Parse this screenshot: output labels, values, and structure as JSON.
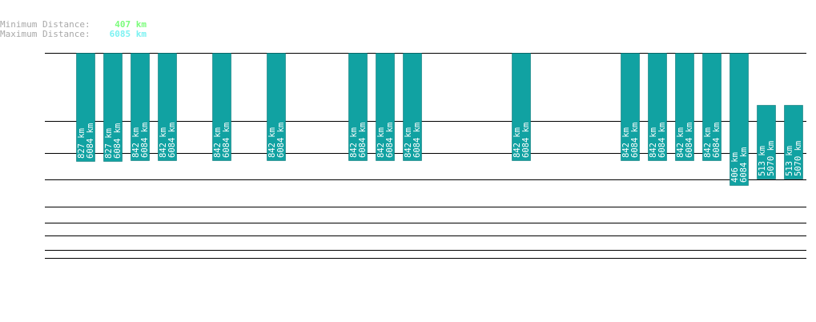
{
  "legend": {
    "min_label": "Minimum Distance:",
    "min_value": "407 km",
    "min_color": "#7cfc7c",
    "max_label": "Maximum Distance:",
    "max_value": "6085 km",
    "max_color": "#7cf2f2"
  },
  "colors": {
    "bar": "#11a2a2",
    "bar_border": "#0b7878",
    "rule": "#000000",
    "label": "#ffffff"
  },
  "chart_data": {
    "type": "bar",
    "title": "",
    "xlabel": "",
    "ylabel": "",
    "grid": true,
    "bars": [
      {
        "min": 827,
        "max": 6084
      },
      {
        "min": 827,
        "max": 6084
      },
      {
        "min": 842,
        "max": 6084
      },
      {
        "min": 842,
        "max": 6084
      },
      {
        "min": 842,
        "max": 6084
      },
      {
        "min": 842,
        "max": 6084
      },
      {
        "min": 842,
        "max": 6084
      },
      {
        "min": 842,
        "max": 6084
      },
      {
        "min": 842,
        "max": 6084
      },
      {
        "min": 842,
        "max": 6084
      },
      {
        "min": 842,
        "max": 6084
      },
      {
        "min": 842,
        "max": 6084
      },
      {
        "min": 842,
        "max": 6084
      },
      {
        "min": 842,
        "max": 6084
      },
      {
        "min": 406,
        "max": 6084
      },
      {
        "min": 513,
        "max": 5070
      },
      {
        "min": 513,
        "max": 5070
      }
    ],
    "unit": "km"
  }
}
